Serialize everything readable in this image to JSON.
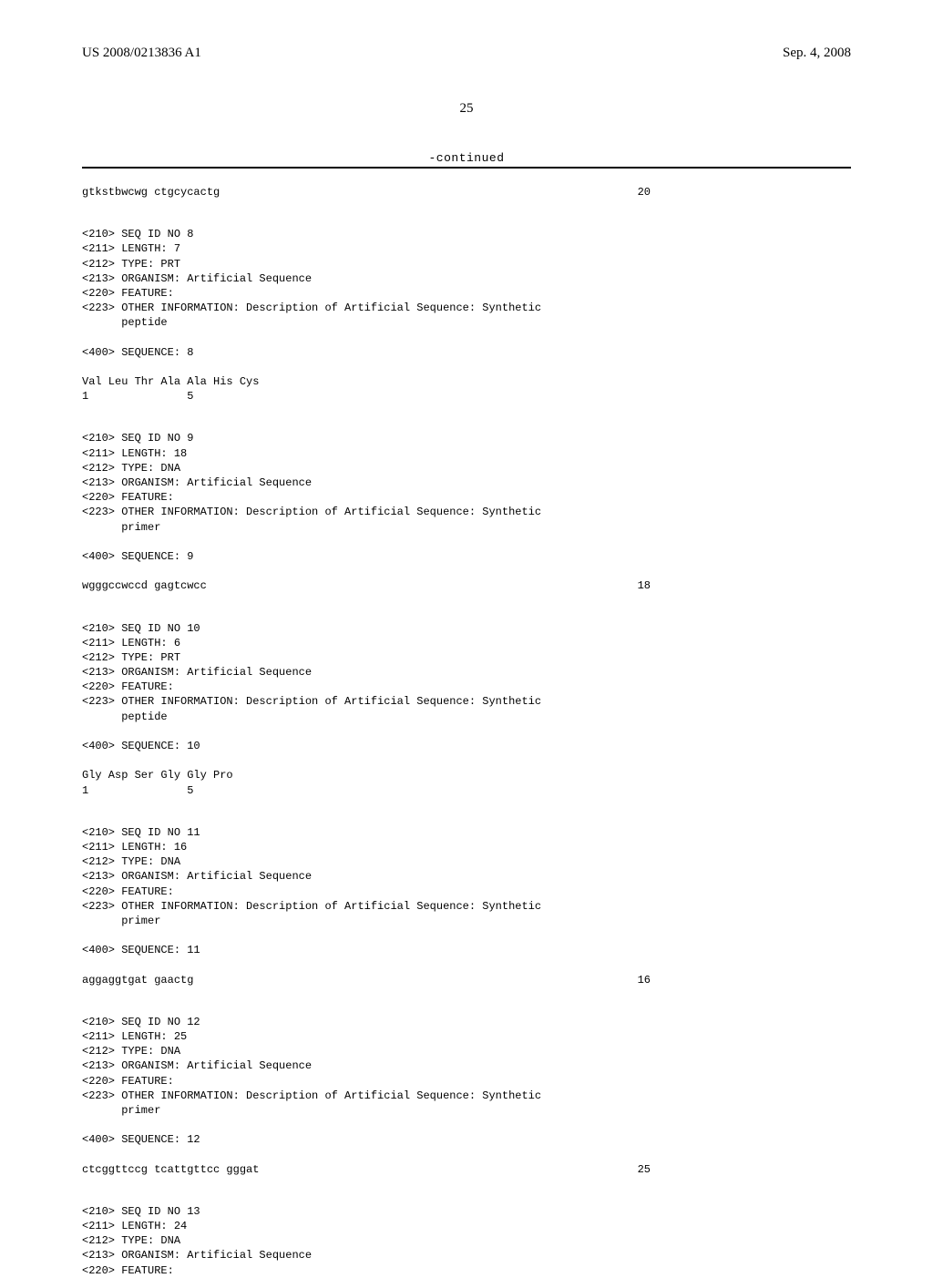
{
  "header": {
    "doc_id": "US 2008/0213836 A1",
    "date": "Sep. 4, 2008"
  },
  "page_number": "25",
  "continued_label": "-continued",
  "blocks": [
    {
      "lines": [
        {
          "text": "gtkstbwcwg ctgcycactg",
          "num": "20"
        }
      ]
    },
    {
      "lines": [
        {
          "text": "<210> SEQ ID NO 8"
        },
        {
          "text": "<211> LENGTH: 7"
        },
        {
          "text": "<212> TYPE: PRT"
        },
        {
          "text": "<213> ORGANISM: Artificial Sequence"
        },
        {
          "text": "<220> FEATURE:"
        },
        {
          "text": "<223> OTHER INFORMATION: Description of Artificial Sequence: Synthetic"
        },
        {
          "text": "      peptide"
        },
        {
          "text": ""
        },
        {
          "text": "<400> SEQUENCE: 8"
        },
        {
          "text": ""
        },
        {
          "text": "Val Leu Thr Ala Ala His Cys"
        },
        {
          "text": "1               5"
        }
      ]
    },
    {
      "lines": [
        {
          "text": "<210> SEQ ID NO 9"
        },
        {
          "text": "<211> LENGTH: 18"
        },
        {
          "text": "<212> TYPE: DNA"
        },
        {
          "text": "<213> ORGANISM: Artificial Sequence"
        },
        {
          "text": "<220> FEATURE:"
        },
        {
          "text": "<223> OTHER INFORMATION: Description of Artificial Sequence: Synthetic"
        },
        {
          "text": "      primer"
        },
        {
          "text": ""
        },
        {
          "text": "<400> SEQUENCE: 9"
        },
        {
          "text": ""
        },
        {
          "text": "wgggccwccd gagtcwcc",
          "num": "18"
        }
      ]
    },
    {
      "lines": [
        {
          "text": "<210> SEQ ID NO 10"
        },
        {
          "text": "<211> LENGTH: 6"
        },
        {
          "text": "<212> TYPE: PRT"
        },
        {
          "text": "<213> ORGANISM: Artificial Sequence"
        },
        {
          "text": "<220> FEATURE:"
        },
        {
          "text": "<223> OTHER INFORMATION: Description of Artificial Sequence: Synthetic"
        },
        {
          "text": "      peptide"
        },
        {
          "text": ""
        },
        {
          "text": "<400> SEQUENCE: 10"
        },
        {
          "text": ""
        },
        {
          "text": "Gly Asp Ser Gly Gly Pro"
        },
        {
          "text": "1               5"
        }
      ]
    },
    {
      "lines": [
        {
          "text": "<210> SEQ ID NO 11"
        },
        {
          "text": "<211> LENGTH: 16"
        },
        {
          "text": "<212> TYPE: DNA"
        },
        {
          "text": "<213> ORGANISM: Artificial Sequence"
        },
        {
          "text": "<220> FEATURE:"
        },
        {
          "text": "<223> OTHER INFORMATION: Description of Artificial Sequence: Synthetic"
        },
        {
          "text": "      primer"
        },
        {
          "text": ""
        },
        {
          "text": "<400> SEQUENCE: 11"
        },
        {
          "text": ""
        },
        {
          "text": "aggaggtgat gaactg",
          "num": "16"
        }
      ]
    },
    {
      "lines": [
        {
          "text": "<210> SEQ ID NO 12"
        },
        {
          "text": "<211> LENGTH: 25"
        },
        {
          "text": "<212> TYPE: DNA"
        },
        {
          "text": "<213> ORGANISM: Artificial Sequence"
        },
        {
          "text": "<220> FEATURE:"
        },
        {
          "text": "<223> OTHER INFORMATION: Description of Artificial Sequence: Synthetic"
        },
        {
          "text": "      primer"
        },
        {
          "text": ""
        },
        {
          "text": "<400> SEQUENCE: 12"
        },
        {
          "text": ""
        },
        {
          "text": "ctcggttccg tcattgttcc gggat",
          "num": "25"
        }
      ]
    },
    {
      "lines": [
        {
          "text": "<210> SEQ ID NO 13"
        },
        {
          "text": "<211> LENGTH: 24"
        },
        {
          "text": "<212> TYPE: DNA"
        },
        {
          "text": "<213> ORGANISM: Artificial Sequence"
        },
        {
          "text": "<220> FEATURE:"
        }
      ]
    }
  ]
}
